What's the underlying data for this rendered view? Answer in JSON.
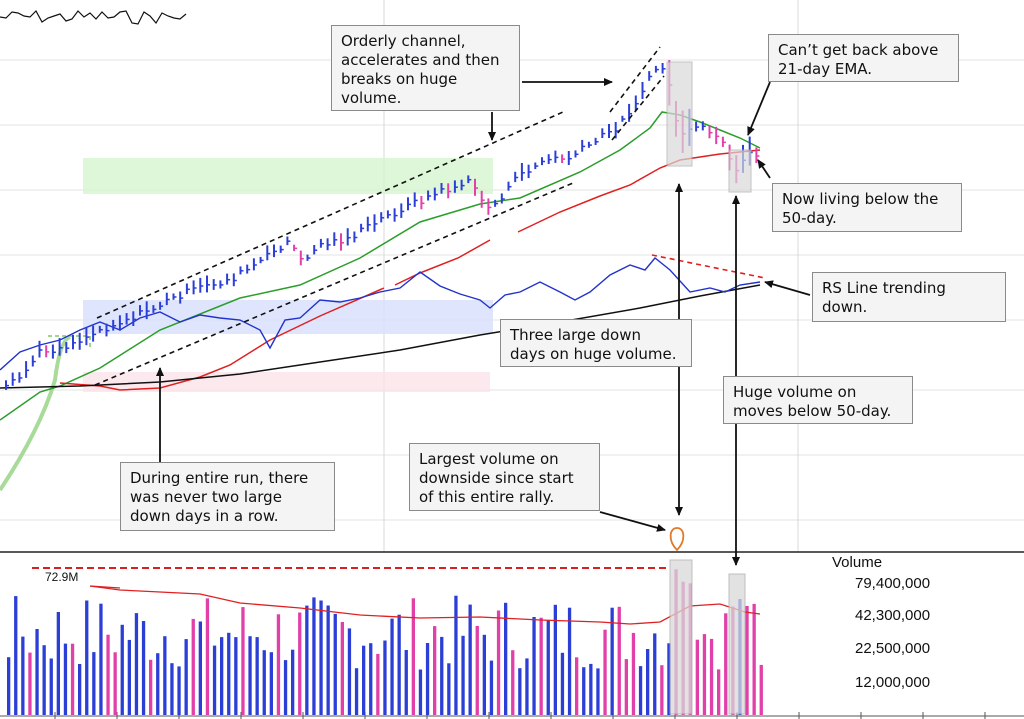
{
  "chart_data": [
    {
      "type": "candlestick",
      "panel": "price",
      "series": [
        {
          "name": "Price",
          "style": "daily bars, blue = up, magenta = down"
        },
        {
          "name": "21-day EMA",
          "color": "#2a9d2a"
        },
        {
          "name": "50-day",
          "color": "#e02020"
        },
        {
          "name": "200-day",
          "color": "#111111"
        },
        {
          "name": "RS Line",
          "color": "#2233cc"
        }
      ],
      "grid": true
    },
    {
      "type": "bar",
      "panel": "volume",
      "title": "Volume",
      "y_ticks": [
        "79,400,000",
        "42,300,000",
        "22,500,000",
        "12,000,000"
      ],
      "average_label": "72.9M",
      "bar_colors": {
        "up": "#2b3fd6",
        "down": "#e040a8"
      }
    }
  ],
  "annotations": {
    "channel": "Orderly channel,\naccelerates and then\nbreaks on huge\nvolume.",
    "ema": "Can’t get back above\n21-day EMA.",
    "below50": "Now living below the\n50-day.",
    "rsline": "RS Line trending\ndown.",
    "threedown": "Three large down\ndays on huge volume.",
    "hugevol": "Huge volume on\nmoves below 50-day.",
    "largestvol": "Largest volume on\ndownside since start\nof this entire rally.",
    "entirerun": "During entire run, there\nwas never two large\ndown days in a row."
  },
  "colors": {
    "up_bar": "#2b3fd6",
    "down_bar": "#e040a8",
    "ema21": "#2a9d2a",
    "ma50": "#e02020",
    "ma200": "#111111",
    "rs_line": "#2233cc",
    "highlight_box": "#d9d9d9"
  }
}
